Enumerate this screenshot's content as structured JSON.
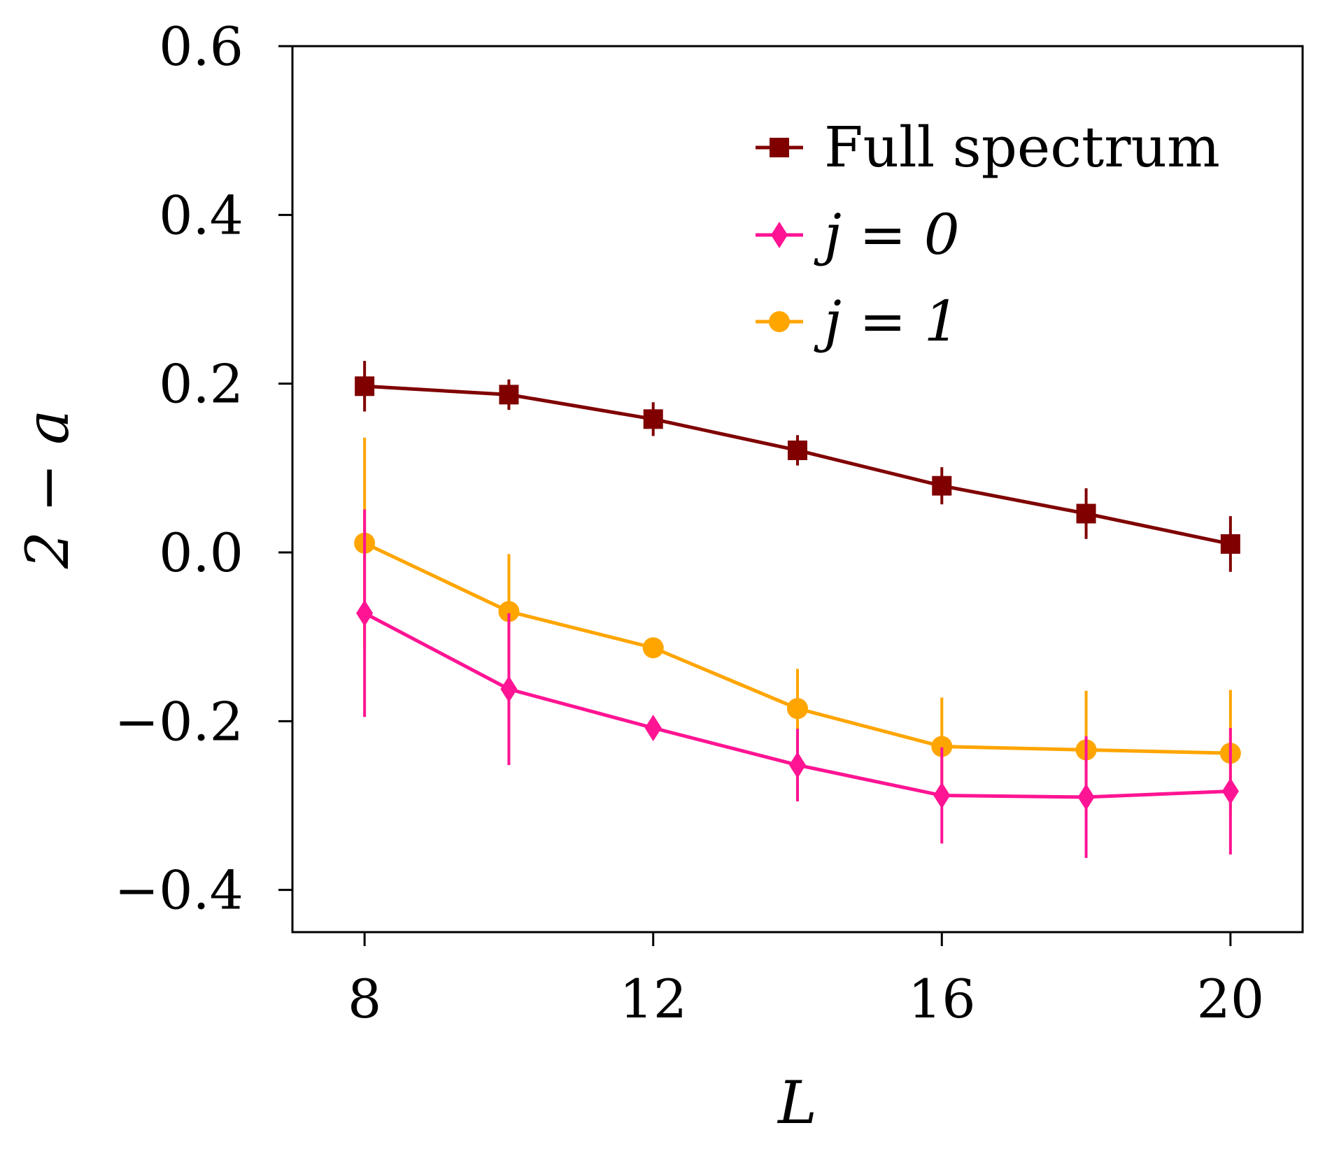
{
  "chart_data": {
    "type": "line",
    "title": "",
    "xlabel": "L",
    "ylabel": "2 − a",
    "xlim": [
      7,
      21
    ],
    "ylim": [
      -0.45,
      0.6
    ],
    "xticks": [
      8,
      12,
      16,
      20
    ],
    "xtick_labels": [
      "8",
      "12",
      "16",
      "20"
    ],
    "yticks": [
      0.6,
      0.4,
      0.2,
      0.0,
      -0.2,
      -0.4
    ],
    "ytick_labels": [
      "0.6",
      "0.4",
      "0.2",
      "0.0",
      "−0.2",
      "−0.4"
    ],
    "grid": false,
    "legend_position": "top-right",
    "series": [
      {
        "name": "Full spectrum",
        "legend": "Full spectrum",
        "color": "#800000",
        "marker": "square",
        "x": [
          8,
          10,
          12,
          14,
          16,
          18,
          20
        ],
        "y": [
          0.197,
          0.187,
          0.158,
          0.121,
          0.079,
          0.046,
          0.01
        ],
        "yerr": [
          0.03,
          0.018,
          0.02,
          0.018,
          0.022,
          0.03,
          0.033
        ]
      },
      {
        "name": "j = 0",
        "legend": "j = 0",
        "color": "#ff1493",
        "marker": "diamond",
        "x": [
          8,
          10,
          12,
          14,
          16,
          18,
          20
        ],
        "y": [
          -0.072,
          -0.162,
          -0.208,
          -0.252,
          -0.288,
          -0.29,
          -0.283
        ],
        "yerr": [
          0.123,
          0.09,
          0.008,
          0.043,
          0.057,
          0.072,
          0.075
        ]
      },
      {
        "name": "j = 1",
        "legend": "j = 1",
        "color": "#ffa500",
        "marker": "circle",
        "x": [
          8,
          10,
          12,
          14,
          16,
          18,
          20
        ],
        "y": [
          0.011,
          -0.07,
          -0.113,
          -0.185,
          -0.23,
          -0.234,
          -0.238
        ],
        "yerr": [
          0.125,
          0.068,
          0.007,
          0.047,
          0.058,
          0.07,
          0.075
        ]
      }
    ]
  }
}
